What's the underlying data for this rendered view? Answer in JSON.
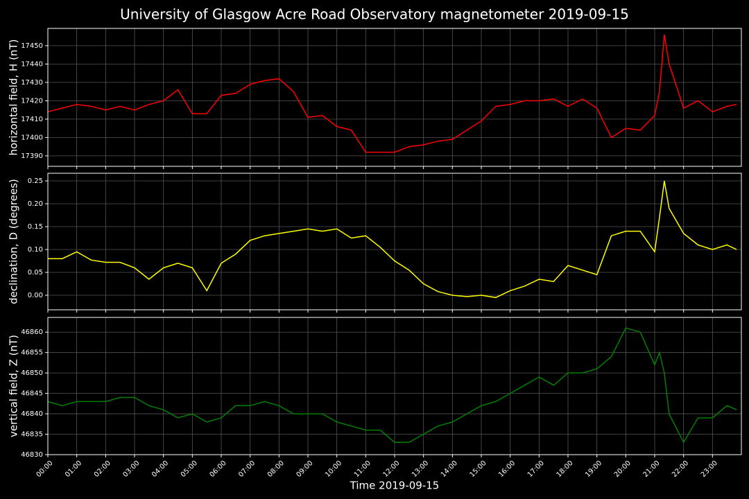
{
  "title": "University of Glasgow Acre Road Observatory magnetometer 2019-09-15",
  "chart_data": [
    {
      "type": "line",
      "ylabel": "horizontal field, H (nT)",
      "color": "#ff0000",
      "grid": true,
      "x": [
        "00:00",
        "00:30",
        "01:00",
        "01:30",
        "02:00",
        "02:30",
        "03:00",
        "03:30",
        "04:00",
        "04:30",
        "05:00",
        "05:30",
        "06:00",
        "06:30",
        "07:00",
        "07:30",
        "08:00",
        "08:30",
        "09:00",
        "09:30",
        "10:00",
        "10:30",
        "11:00",
        "11:30",
        "12:00",
        "12:30",
        "13:00",
        "13:30",
        "14:00",
        "14:30",
        "15:00",
        "15:30",
        "16:00",
        "16:30",
        "17:00",
        "17:30",
        "18:00",
        "18:30",
        "19:00",
        "19:30",
        "20:00",
        "20:30",
        "21:00",
        "21:10",
        "21:20",
        "21:30",
        "22:00",
        "22:30",
        "23:00",
        "23:30",
        "23:50"
      ],
      "values": [
        17414,
        17416,
        17418,
        17417,
        17415,
        17417,
        17415,
        17418,
        17420,
        17426,
        17413,
        17413,
        17423,
        17424,
        17429,
        17431,
        17432,
        17425,
        17411,
        17412,
        17406,
        17404,
        17392,
        17392,
        17392,
        17395,
        17396,
        17398,
        17399,
        17404,
        17409,
        17417,
        17418,
        17420,
        17420,
        17421,
        17417,
        17421,
        17416,
        17400,
        17405,
        17404,
        17412,
        17425,
        17456,
        17440,
        17416,
        17420,
        17414,
        17417,
        17418
      ],
      "xlim": [
        "00:00",
        "24:00"
      ],
      "xticks": [
        "00:00",
        "01:00",
        "02:00",
        "03:00",
        "04:00",
        "05:00",
        "06:00",
        "07:00",
        "08:00",
        "09:00",
        "10:00",
        "11:00",
        "12:00",
        "13:00",
        "14:00",
        "15:00",
        "16:00",
        "17:00",
        "18:00",
        "19:00",
        "20:00",
        "21:00",
        "22:00",
        "23:00"
      ],
      "ylim": [
        17384.3,
        17459.4
      ],
      "yticks": [
        17390,
        17400,
        17410,
        17420,
        17430,
        17440,
        17450
      ]
    },
    {
      "type": "line",
      "ylabel": "declination, D (degrees)",
      "color": "#ffff00",
      "grid": true,
      "x": [
        "00:00",
        "00:30",
        "01:00",
        "01:30",
        "02:00",
        "02:30",
        "03:00",
        "03:30",
        "04:00",
        "04:30",
        "05:00",
        "05:30",
        "06:00",
        "06:30",
        "07:00",
        "07:30",
        "08:00",
        "08:30",
        "09:00",
        "09:30",
        "10:00",
        "10:30",
        "11:00",
        "11:30",
        "12:00",
        "12:30",
        "13:00",
        "13:30",
        "14:00",
        "14:30",
        "15:00",
        "15:30",
        "16:00",
        "16:30",
        "17:00",
        "17:30",
        "18:00",
        "18:30",
        "19:00",
        "19:30",
        "20:00",
        "20:30",
        "21:00",
        "21:10",
        "21:20",
        "21:30",
        "22:00",
        "22:30",
        "23:00",
        "23:30",
        "23:50"
      ],
      "values": [
        0.08,
        0.08,
        0.095,
        0.077,
        0.072,
        0.072,
        0.06,
        0.035,
        0.06,
        0.07,
        0.06,
        0.01,
        0.07,
        0.09,
        0.12,
        0.13,
        0.135,
        0.14,
        0.145,
        0.14,
        0.145,
        0.125,
        0.13,
        0.105,
        0.075,
        0.055,
        0.025,
        0.008,
        0.0,
        -0.003,
        0.0,
        -0.005,
        0.01,
        0.02,
        0.035,
        0.03,
        0.065,
        0.055,
        0.045,
        0.13,
        0.14,
        0.14,
        0.095,
        0.17,
        0.25,
        0.19,
        0.135,
        0.11,
        0.1,
        0.11,
        0.1
      ],
      "xlim": [
        "00:00",
        "24:00"
      ],
      "xticks": [
        "00:00",
        "01:00",
        "02:00",
        "03:00",
        "04:00",
        "05:00",
        "06:00",
        "07:00",
        "08:00",
        "09:00",
        "10:00",
        "11:00",
        "12:00",
        "13:00",
        "14:00",
        "15:00",
        "16:00",
        "17:00",
        "18:00",
        "19:00",
        "20:00",
        "21:00",
        "22:00",
        "23:00"
      ],
      "ylim": [
        -0.0318,
        0.2667
      ],
      "yticks": [
        {
          "value": 0,
          "label": "0.00"
        },
        0.05,
        {
          "value": 0.1,
          "label": "0.10"
        },
        0.15,
        {
          "value": 0.2,
          "label": "0.20"
        },
        0.25
      ]
    },
    {
      "type": "line",
      "ylabel": "vertical field, Z (nT)",
      "xlabel": "Time 2019-09-15",
      "color": "#008000",
      "grid": true,
      "x": [
        "00:00",
        "00:30",
        "01:00",
        "01:30",
        "02:00",
        "02:30",
        "03:00",
        "03:30",
        "04:00",
        "04:30",
        "05:00",
        "05:30",
        "06:00",
        "06:30",
        "07:00",
        "07:30",
        "08:00",
        "08:30",
        "09:00",
        "09:30",
        "10:00",
        "10:30",
        "11:00",
        "11:30",
        "12:00",
        "12:30",
        "13:00",
        "13:30",
        "14:00",
        "14:30",
        "15:00",
        "15:30",
        "16:00",
        "16:30",
        "17:00",
        "17:30",
        "18:00",
        "18:30",
        "19:00",
        "19:30",
        "20:00",
        "20:30",
        "21:00",
        "21:10",
        "21:20",
        "21:30",
        "22:00",
        "22:30",
        "23:00",
        "23:30",
        "23:50"
      ],
      "values": [
        46843,
        46842,
        46843,
        46843,
        46843,
        46844,
        46844,
        46842,
        46841,
        46839,
        46840,
        46838,
        46839,
        46842,
        46842,
        46843,
        46842,
        46840,
        46840,
        46840,
        46838,
        46837,
        46836,
        46836,
        46833,
        46833,
        46835,
        46837,
        46838,
        46840,
        46842,
        46843,
        46845,
        46847,
        46849,
        46847,
        46850,
        46850,
        46851,
        46854,
        46861,
        46860,
        46852,
        46855,
        46850,
        46840,
        46833,
        46839,
        46839,
        46842,
        46841
      ],
      "xlim": [
        "00:00",
        "24:00"
      ],
      "xticks": [
        "00:00",
        "01:00",
        "02:00",
        "03:00",
        "04:00",
        "05:00",
        "06:00",
        "07:00",
        "08:00",
        "09:00",
        "10:00",
        "11:00",
        "12:00",
        "13:00",
        "14:00",
        "15:00",
        "16:00",
        "17:00",
        "18:00",
        "19:00",
        "20:00",
        "21:00",
        "22:00",
        "23:00"
      ],
      "ylim": [
        46830,
        46863.6
      ],
      "yticks": [
        46830,
        46835,
        46840,
        46845,
        46850,
        46855,
        46860
      ],
      "show_xticklabels": true
    }
  ]
}
